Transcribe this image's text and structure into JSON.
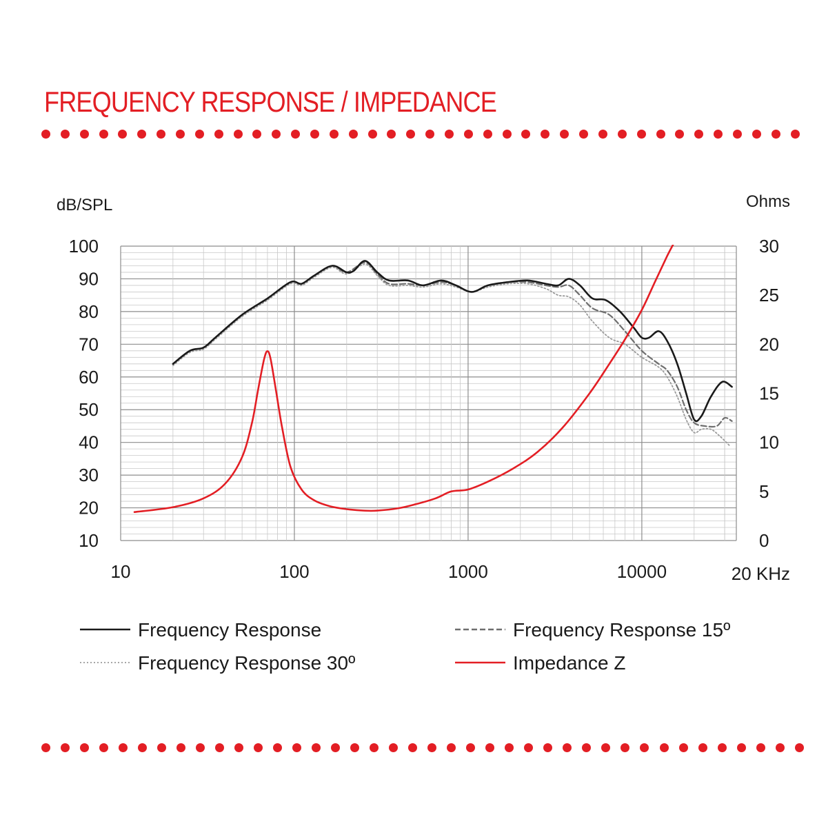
{
  "title": "FREQUENCY RESPONSE / IMPEDANCE",
  "colors": {
    "accent": "#e31e24",
    "fr": "#1a1a1a",
    "fr15": "#6e6e6e",
    "fr30": "#9a9a9a",
    "grid": "#c8c8c8",
    "grid_major": "#8c8c8c"
  },
  "chart_data": {
    "type": "line",
    "x_scale": "log",
    "xlim": [
      10,
      35000
    ],
    "ylim_left": [
      10,
      100
    ],
    "ylim_right": [
      0,
      30
    ],
    "ylabel_left": "dB/SPL",
    "ylabel_right": "Ohms",
    "x_ticks": [
      {
        "value": 10,
        "label": "10"
      },
      {
        "value": 100,
        "label": "100"
      },
      {
        "value": 1000,
        "label": "1000"
      },
      {
        "value": 10000,
        "label": "10000"
      }
    ],
    "x_end_label": "20 KHz",
    "y_left_ticks": [
      "10",
      "20",
      "30",
      "40",
      "50",
      "60",
      "70",
      "80",
      "90",
      "100"
    ],
    "y_right_ticks": [
      "0",
      "5",
      "10",
      "15",
      "20",
      "25",
      "30"
    ],
    "grid": true,
    "legend_position": "bottom",
    "series": [
      {
        "name": "Frequency Response",
        "axis": "left",
        "style": "solid",
        "points": [
          [
            20,
            64
          ],
          [
            25,
            68
          ],
          [
            30,
            69
          ],
          [
            35,
            72
          ],
          [
            50,
            79
          ],
          [
            70,
            84
          ],
          [
            95,
            89
          ],
          [
            110,
            88.5
          ],
          [
            130,
            91
          ],
          [
            165,
            94
          ],
          [
            200,
            92
          ],
          [
            220,
            92.5
          ],
          [
            255,
            95.5
          ],
          [
            300,
            92
          ],
          [
            350,
            89.5
          ],
          [
            450,
            89.5
          ],
          [
            550,
            88
          ],
          [
            700,
            89.5
          ],
          [
            850,
            88
          ],
          [
            1050,
            86
          ],
          [
            1300,
            88
          ],
          [
            1700,
            89
          ],
          [
            2200,
            89.5
          ],
          [
            2800,
            88.5
          ],
          [
            3300,
            88
          ],
          [
            3800,
            90
          ],
          [
            4400,
            88
          ],
          [
            5200,
            84
          ],
          [
            6200,
            83.5
          ],
          [
            7500,
            80
          ],
          [
            9000,
            75
          ],
          [
            10000,
            72
          ],
          [
            11000,
            72
          ],
          [
            12500,
            74
          ],
          [
            14000,
            71
          ],
          [
            16000,
            64
          ],
          [
            18000,
            55
          ],
          [
            20000,
            47
          ],
          [
            22000,
            48
          ],
          [
            25000,
            54
          ],
          [
            29000,
            58.5
          ],
          [
            33000,
            57
          ]
        ]
      },
      {
        "name": "Frequency Response 15º",
        "axis": "left",
        "style": "dashed",
        "points": [
          [
            20,
            64
          ],
          [
            25,
            68
          ],
          [
            30,
            69
          ],
          [
            35,
            72
          ],
          [
            50,
            79
          ],
          [
            70,
            84
          ],
          [
            95,
            89
          ],
          [
            110,
            88.5
          ],
          [
            130,
            91
          ],
          [
            165,
            94
          ],
          [
            200,
            92
          ],
          [
            255,
            95
          ],
          [
            300,
            91.5
          ],
          [
            350,
            88.5
          ],
          [
            450,
            88.5
          ],
          [
            550,
            88
          ],
          [
            700,
            89
          ],
          [
            850,
            88
          ],
          [
            1050,
            86
          ],
          [
            1300,
            88
          ],
          [
            1700,
            89
          ],
          [
            2200,
            89
          ],
          [
            2800,
            88
          ],
          [
            3300,
            87.5
          ],
          [
            3800,
            88
          ],
          [
            4400,
            85
          ],
          [
            5200,
            81
          ],
          [
            6500,
            79
          ],
          [
            8000,
            74
          ],
          [
            10000,
            68
          ],
          [
            12500,
            64
          ],
          [
            14000,
            62
          ],
          [
            16000,
            57
          ],
          [
            18000,
            50
          ],
          [
            20000,
            46
          ],
          [
            23000,
            45
          ],
          [
            27000,
            45
          ],
          [
            30000,
            47.5
          ],
          [
            33000,
            46.5
          ]
        ]
      },
      {
        "name": "Frequency Response 30º",
        "axis": "left",
        "style": "dotted",
        "points": [
          [
            20,
            63.5
          ],
          [
            25,
            67.5
          ],
          [
            30,
            68.5
          ],
          [
            35,
            71.5
          ],
          [
            50,
            78.5
          ],
          [
            70,
            83.5
          ],
          [
            95,
            88.5
          ],
          [
            110,
            88
          ],
          [
            130,
            90.5
          ],
          [
            165,
            93.5
          ],
          [
            200,
            91.5
          ],
          [
            255,
            94.5
          ],
          [
            300,
            91
          ],
          [
            350,
            88
          ],
          [
            450,
            88
          ],
          [
            550,
            87.5
          ],
          [
            700,
            88.5
          ],
          [
            850,
            87.5
          ],
          [
            1050,
            86
          ],
          [
            1300,
            87.5
          ],
          [
            1700,
            88.5
          ],
          [
            2200,
            88.5
          ],
          [
            2800,
            87
          ],
          [
            3300,
            85
          ],
          [
            3800,
            84.5
          ],
          [
            4400,
            82
          ],
          [
            5200,
            77
          ],
          [
            6500,
            72
          ],
          [
            8000,
            70
          ],
          [
            10000,
            66
          ],
          [
            12500,
            63
          ],
          [
            14000,
            60
          ],
          [
            16000,
            54
          ],
          [
            18000,
            47
          ],
          [
            20000,
            43
          ],
          [
            22000,
            44
          ],
          [
            25000,
            44
          ],
          [
            28000,
            42
          ],
          [
            32000,
            39
          ]
        ]
      },
      {
        "name": "Impedance Z",
        "axis": "right",
        "style": "solid",
        "points": [
          [
            12,
            2.9
          ],
          [
            20,
            3.4
          ],
          [
            30,
            4.3
          ],
          [
            40,
            5.8
          ],
          [
            50,
            8.5
          ],
          [
            57,
            12
          ],
          [
            62,
            15.5
          ],
          [
            67,
            18.5
          ],
          [
            70,
            19.3
          ],
          [
            73,
            18.5
          ],
          [
            78,
            15.5
          ],
          [
            85,
            11.5
          ],
          [
            95,
            7.5
          ],
          [
            110,
            5.2
          ],
          [
            130,
            4.1
          ],
          [
            160,
            3.5
          ],
          [
            200,
            3.2
          ],
          [
            250,
            3.05
          ],
          [
            300,
            3.05
          ],
          [
            400,
            3.3
          ],
          [
            500,
            3.7
          ],
          [
            650,
            4.3
          ],
          [
            800,
            5.0
          ],
          [
            1000,
            5.2
          ],
          [
            1300,
            6.0
          ],
          [
            1800,
            7.3
          ],
          [
            2500,
            9.0
          ],
          [
            3500,
            11.5
          ],
          [
            5000,
            15.0
          ],
          [
            6500,
            18.0
          ],
          [
            8000,
            20.5
          ],
          [
            10000,
            23.5
          ],
          [
            12000,
            26.5
          ],
          [
            14000,
            29
          ],
          [
            15500,
            30.5
          ]
        ]
      }
    ]
  },
  "legend": [
    {
      "label": "Frequency Response",
      "style": "solid",
      "color": "#1a1a1a"
    },
    {
      "label": "Frequency Response 15º",
      "style": "dashed",
      "color": "#6e6e6e"
    },
    {
      "label": "Frequency Response 30º",
      "style": "dotted",
      "color": "#9a9a9a"
    },
    {
      "label": "Impedance Z",
      "style": "solid",
      "color": "#e31e24"
    }
  ]
}
